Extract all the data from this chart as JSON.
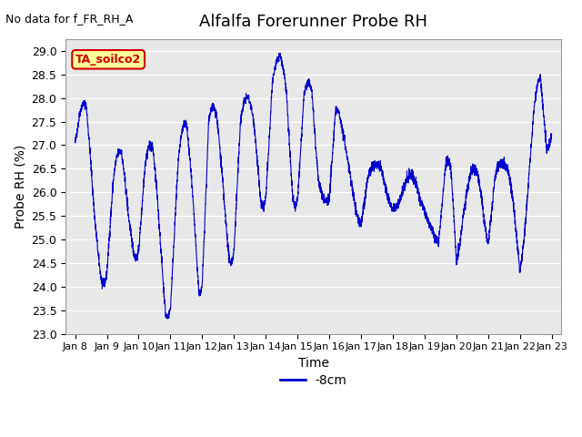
{
  "title": "Alfalfa Forerunner Probe RH",
  "top_left_text": "No data for f_FR_RH_A",
  "ylabel": "Probe RH (%)",
  "xlabel": "Time",
  "legend_label": "-8cm",
  "legend_color": "#0000CC",
  "box_label": "TA_soilco2",
  "box_facecolor": "#FFFF99",
  "box_edgecolor": "#CC0000",
  "line_color": "#0000CC",
  "bg_color": "#E8E8E8",
  "ylim": [
    23.0,
    29.25
  ],
  "yticks": [
    23.0,
    23.5,
    24.0,
    24.5,
    25.0,
    25.5,
    26.0,
    26.5,
    27.0,
    27.5,
    28.0,
    28.5,
    29.0
  ],
  "xtick_labels": [
    "Jan 8",
    "Jan 9",
    "Jan 10",
    "Jan 11",
    "Jan 12",
    "Jan 13",
    "Jan 14",
    "Jan 15",
    "Jan 16",
    "Jan 17",
    "Jan 18",
    "Jan 19",
    "Jan 20",
    "Jan 21",
    "Jan 22",
    "Jan 23"
  ],
  "seed": 42,
  "num_points": 3600,
  "keypoints_x": [
    0.0,
    0.15,
    0.35,
    0.6,
    0.85,
    1.0,
    1.2,
    1.45,
    1.7,
    1.9,
    2.0,
    2.2,
    2.45,
    2.65,
    2.85,
    3.0,
    3.25,
    3.5,
    3.75,
    3.9,
    4.0,
    4.2,
    4.45,
    4.65,
    4.85,
    5.0,
    5.2,
    5.45,
    5.65,
    5.85,
    6.0,
    6.2,
    6.45,
    6.65,
    6.85,
    7.0,
    7.2,
    7.45,
    7.65,
    7.85,
    8.0,
    8.2,
    8.45,
    8.65,
    8.85,
    9.0,
    9.2,
    9.45,
    9.65,
    9.85,
    10.0,
    10.2,
    10.45,
    10.65,
    10.85,
    11.0,
    11.2,
    11.45,
    11.65,
    11.85,
    12.0,
    12.2,
    12.45,
    12.65,
    12.85,
    13.0,
    13.2,
    13.45,
    13.65,
    13.85,
    14.0,
    14.2,
    14.45,
    14.65,
    14.85,
    15.0
  ],
  "keypoints_y": [
    26.9,
    27.8,
    28.05,
    25.5,
    23.85,
    24.1,
    26.5,
    27.1,
    25.3,
    24.45,
    24.5,
    26.85,
    27.15,
    25.3,
    23.2,
    23.3,
    27.0,
    27.7,
    25.5,
    23.55,
    23.6,
    27.9,
    27.8,
    26.2,
    24.35,
    24.4,
    27.8,
    28.1,
    27.5,
    25.5,
    25.5,
    28.5,
    29.0,
    28.35,
    25.5,
    25.5,
    28.3,
    28.4,
    26.0,
    25.9,
    25.5,
    28.1,
    27.2,
    26.4,
    25.55,
    25.1,
    26.4,
    26.65,
    26.5,
    25.85,
    25.6,
    25.75,
    26.35,
    26.4,
    25.85,
    25.55,
    25.3,
    24.7,
    26.8,
    26.75,
    24.05,
    25.5,
    26.5,
    26.6,
    25.6,
    24.55,
    26.5,
    26.65,
    26.5,
    25.5,
    24.0,
    25.5,
    27.95,
    28.7,
    26.5,
    27.35
  ]
}
